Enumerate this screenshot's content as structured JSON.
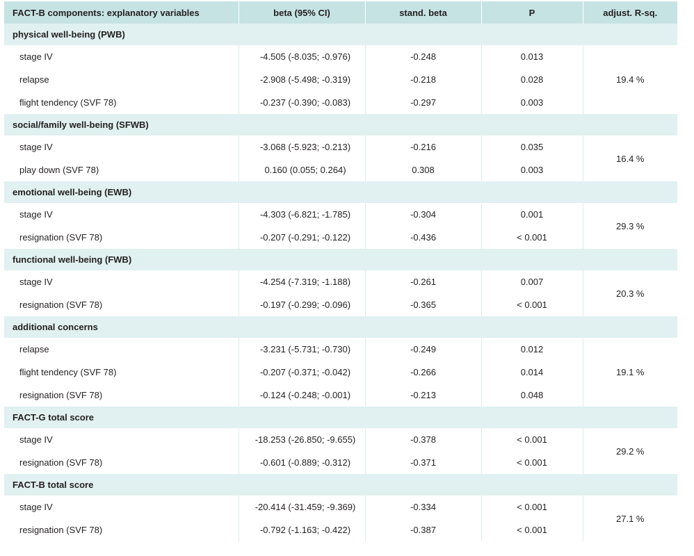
{
  "headers": [
    "FACT-B components: explanatory variables",
    "beta (95% CI)",
    "stand. beta",
    "P",
    "adjust. R-sq."
  ],
  "groups": [
    {
      "title": "physical well-being (PWB)",
      "rsq": "19.4 %",
      "rows": [
        {
          "variable": "stage IV",
          "beta": "-4.505 (-8.035; -0.976)",
          "stand_beta": "-0.248",
          "p": "0.013"
        },
        {
          "variable": "relapse",
          "beta": "-2.908 (-5.498; -0.319)",
          "stand_beta": "-0.218",
          "p": "0.028"
        },
        {
          "variable": "flight tendency (SVF 78)",
          "beta": "-0.237 (-0.390; -0.083)",
          "stand_beta": "-0.297",
          "p": "0.003"
        }
      ]
    },
    {
      "title": "social/family well-being (SFWB)",
      "rsq": "16.4 %",
      "rows": [
        {
          "variable": "stage IV",
          "beta": "-3.068 (-5.923; -0.213)",
          "stand_beta": "-0.216",
          "p": "0.035"
        },
        {
          "variable": "play down (SVF 78)",
          "beta": "0.160 (0.055; 0.264)",
          "stand_beta": "0.308",
          "p": "0.003"
        }
      ]
    },
    {
      "title": "emotional well-being (EWB)",
      "rsq": "29.3 %",
      "rows": [
        {
          "variable": "stage IV",
          "beta": "-4.303 (-6.821; -1.785)",
          "stand_beta": "-0.304",
          "p": "0.001"
        },
        {
          "variable": "resignation (SVF 78)",
          "beta": "-0.207 (-0.291; -0.122)",
          "stand_beta": "-0.436",
          "p": "< 0.001"
        }
      ]
    },
    {
      "title": "functional well-being (FWB)",
      "rsq": "20.3 %",
      "rows": [
        {
          "variable": "stage IV",
          "beta": "-4.254 (-7.319; -1.188)",
          "stand_beta": "-0.261",
          "p": "0.007"
        },
        {
          "variable": "resignation (SVF 78)",
          "beta": "-0.197 (-0.299; -0.096)",
          "stand_beta": "-0.365",
          "p": "< 0.001"
        }
      ]
    },
    {
      "title": "additional concerns",
      "rsq": "19.1 %",
      "rows": [
        {
          "variable": "relapse",
          "beta": "-3.231 (-5.731; -0.730)",
          "stand_beta": "-0.249",
          "p": "0.012"
        },
        {
          "variable": "flight tendency (SVF 78)",
          "beta": "-0.207 (-0.371; -0.042)",
          "stand_beta": "-0.266",
          "p": "0.014"
        },
        {
          "variable": "resignation (SVF 78)",
          "beta": "-0.124 (-0.248; -0.001)",
          "stand_beta": "-0.213",
          "p": "0.048"
        }
      ]
    },
    {
      "title": "FACT-G total score",
      "rsq": "29.2 %",
      "rows": [
        {
          "variable": "stage IV",
          "beta": "-18.253 (-26.850; -9.655)",
          "stand_beta": "-0.378",
          "p": "< 0.001"
        },
        {
          "variable": "resignation (SVF 78)",
          "beta": "-0.601 (-0.889; -0.312)",
          "stand_beta": "-0.371",
          "p": "< 0.001"
        }
      ]
    },
    {
      "title": "FACT-B total score",
      "rsq": "27.1 %",
      "rows": [
        {
          "variable": "stage IV",
          "beta": "-20.414 (-31.459; -9.369)",
          "stand_beta": "-0.334",
          "p": "< 0.001"
        },
        {
          "variable": "resignation (SVF 78)",
          "beta": "-0.792 (-1.163; -0.422)",
          "stand_beta": "-0.387",
          "p": "< 0.001"
        }
      ]
    }
  ]
}
